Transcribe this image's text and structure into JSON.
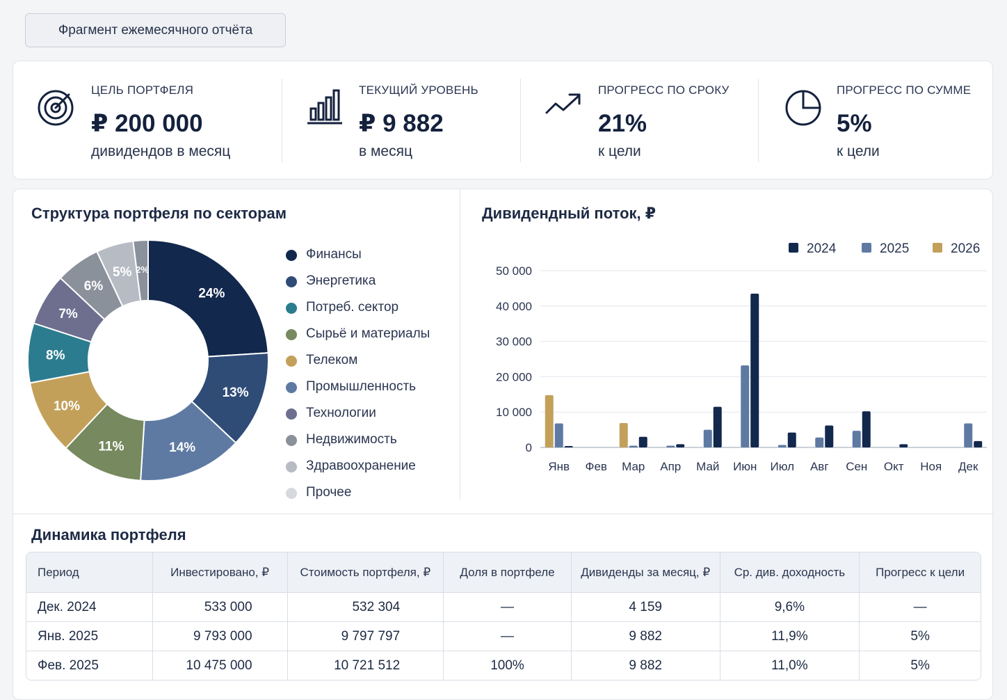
{
  "header": {
    "tag": "Фрагмент ежемесячного отчёта"
  },
  "kpis": [
    {
      "icon": "target-icon",
      "label": "ЦЕЛЬ ПОРТФЕЛЯ",
      "value": "₽ 200 000",
      "sub": "дивидендов в месяц"
    },
    {
      "icon": "bar-chart-icon",
      "label": "ТЕКУЩИЙ УРОВЕНЬ",
      "value": "₽ 9 882",
      "sub": "в месяц"
    },
    {
      "icon": "trending-up-icon",
      "label": "ПРОГРЕСС ПО СРОКУ",
      "value": "21%",
      "sub": "к цели"
    },
    {
      "icon": "pie-clock-icon",
      "label": "ПРОГРЕСС ПО СУММЕ",
      "value": "5%",
      "sub": "к цели"
    }
  ],
  "sector_chart": {
    "title": "Структура портфеля по секторам"
  },
  "dividend_chart": {
    "title": "Дивидендный поток, ₽"
  },
  "chart_data": [
    {
      "type": "pie",
      "title": "Структура портфеля по секторам",
      "donut": true,
      "categories": [
        "Финансы",
        "Энергетика",
        "Потреб. сектор",
        "Сырьё и материалы",
        "Телеком",
        "Промышленность",
        "Технологии",
        "Недвижимость",
        "Здравоохранение",
        "Прочее"
      ],
      "values": [
        24,
        13,
        14,
        11,
        10,
        8,
        7,
        6,
        5,
        2
      ],
      "labels": [
        "24%",
        "13%",
        "14%",
        "11%",
        "10%",
        "8%",
        "7%",
        "6%",
        "5%",
        "2%"
      ],
      "slice_colors": [
        "#12284d",
        "#2f4c77",
        "#5e7aa3",
        "#76895f",
        "#c3a05a",
        "#2c7c8f",
        "#6e6f8f",
        "#8a919b",
        "#b7bcc4",
        "#8a919b"
      ],
      "legend_colors": [
        "#12284d",
        "#2f4c77",
        "#2c7c8f",
        "#76895f",
        "#c3a05a",
        "#5e7aa3",
        "#6e6f8f",
        "#8a919b",
        "#b7bcc4",
        "#d6d9de"
      ],
      "legend_position": "right"
    },
    {
      "type": "bar",
      "title": "Дивидендный поток, ₽",
      "categories": [
        "Янв",
        "Фев",
        "Мар",
        "Апр",
        "Май",
        "Июн",
        "Июл",
        "Авг",
        "Сен",
        "Окт",
        "Ноя",
        "Дек"
      ],
      "series": [
        {
          "name": "2024",
          "color": "#12284d",
          "values": [
            400,
            0,
            3000,
            900,
            11500,
            43500,
            4200,
            6200,
            10200,
            900,
            0,
            1800
          ]
        },
        {
          "name": "2025",
          "color": "#5e7aa3",
          "values": [
            6800,
            0,
            500,
            500,
            5000,
            23200,
            700,
            2800,
            4700,
            0,
            0,
            6800
          ]
        },
        {
          "name": "2026",
          "color": "#c3a05a",
          "values": [
            14800,
            0,
            6900,
            0,
            0,
            0,
            0,
            0,
            0,
            0,
            0,
            0
          ]
        }
      ],
      "ylim": [
        0,
        50000
      ],
      "yticks": [
        "50 000",
        "40 000",
        "30 000",
        "20 000",
        "10 000",
        "0"
      ],
      "grid": true,
      "legend_position": "top-right"
    }
  ],
  "table": {
    "title": "Динамика портфеля",
    "columns": [
      "Период",
      "Инвестировано, ₽",
      "Стоимость портфеля, ₽",
      "Доля в портфеле",
      "Дивиденды за месяц, ₽",
      "Ср. див. доходность",
      "Прогресс к цели"
    ],
    "rows": [
      [
        "Дек. 2024",
        "533 000",
        "532 304",
        "—",
        "4 159",
        "9,6%",
        "—"
      ],
      [
        "Янв. 2025",
        "9 793 000",
        "9 797 797",
        "—",
        "9 882",
        "11,9%",
        "5%"
      ],
      [
        "Фев. 2025",
        "10 475 000",
        "10 721 512",
        "100%",
        "9 882",
        "11,0%",
        "5%"
      ]
    ]
  }
}
